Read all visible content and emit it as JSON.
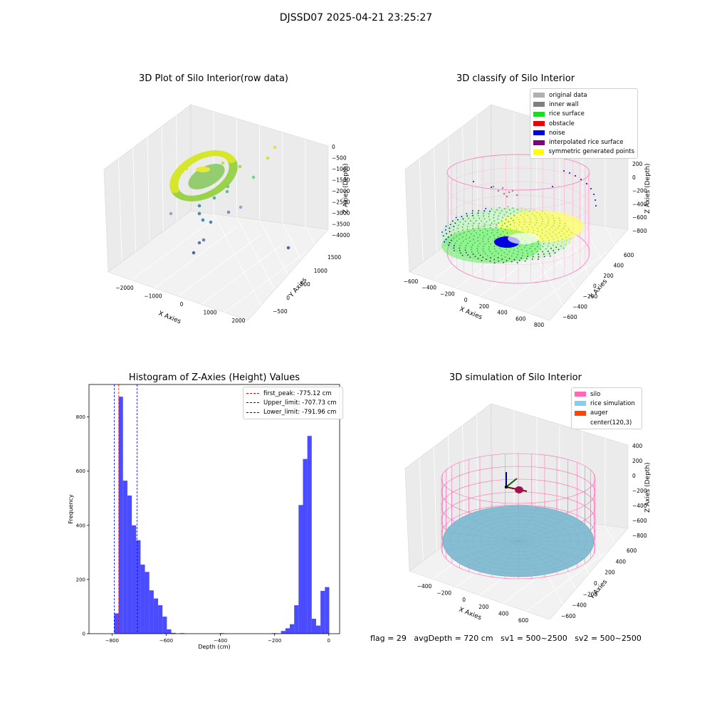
{
  "suptitle": "DJSSD07 2025-04-21 23:25:27",
  "footer": {
    "flag": "flag = 29",
    "avg_depth": "avgDepth = 720 cm",
    "sv1": "sv1 = 500~2500",
    "sv2": "sv2 = 500~2500"
  },
  "chart_data": [
    {
      "type": "scatter",
      "title": "3D Plot of Silo Interior(row data)",
      "xlabel": "X Axies",
      "ylabel": "Y Axies",
      "zlabel": "Z Axies (Depth)",
      "x_ticks": [
        "−2000",
        "−1000",
        "0",
        "1000",
        "2000"
      ],
      "y_ticks": [
        "−500",
        "0",
        "500",
        "1000",
        "1500"
      ],
      "z_ticks": [
        "0",
        "−500",
        "−1000",
        "−1500",
        "−2000",
        "−2500",
        "−3000",
        "−3500",
        "−4000"
      ],
      "xlim": [
        -2500,
        2500
      ],
      "ylim": [
        -700,
        1700
      ],
      "zlim": [
        -4300,
        200
      ]
    },
    {
      "type": "scatter",
      "title": "3D classify of Silo Interior",
      "xlabel": "X Axies",
      "ylabel": "Y Axies",
      "zlabel": "Z Axies (Depth)",
      "x_ticks": [
        "−600",
        "−400",
        "−200",
        "0",
        "200",
        "400",
        "600",
        "800"
      ],
      "y_ticks": [
        "−600",
        "−400",
        "−200",
        "0",
        "200",
        "400",
        "600"
      ],
      "z_ticks": [
        "200",
        "0",
        "−200",
        "−400",
        "−600",
        "−800"
      ],
      "legend": [
        {
          "label": "original data",
          "color": "#b0b0b0"
        },
        {
          "label": "inner wall",
          "color": "#808080"
        },
        {
          "label": "rice surface",
          "color": "#00ee00"
        },
        {
          "label": "obstacle",
          "color": "#ee0000"
        },
        {
          "label": "noise",
          "color": "#0000ee"
        },
        {
          "label": "interpolated rice surface",
          "color": "#800080"
        },
        {
          "label": "symmetric generated points",
          "color": "#ffff00"
        }
      ]
    },
    {
      "type": "bar",
      "title": "Histogram of Z-Axies (Height) Values",
      "xlabel": "Depth (cm)",
      "ylabel": "Frequency",
      "xlim": [
        -885,
        40
      ],
      "ylim": [
        0,
        920
      ],
      "x_ticks": [
        -800,
        -600,
        -400,
        -200,
        0
      ],
      "x_tick_labels": [
        "−800",
        "−600",
        "−400",
        "−200",
        "0"
      ],
      "y_ticks": [
        0,
        200,
        400,
        600,
        800
      ],
      "bar_color": "#0000ff",
      "bin_width": 16.2,
      "bins": [
        {
          "x": -791.96,
          "value": 75
        },
        {
          "x": -775.76,
          "value": 875
        },
        {
          "x": -759.56,
          "value": 565
        },
        {
          "x": -743.36,
          "value": 510
        },
        {
          "x": -727.16,
          "value": 400
        },
        {
          "x": -710.96,
          "value": 345
        },
        {
          "x": -694.76,
          "value": 255
        },
        {
          "x": -678.56,
          "value": 228
        },
        {
          "x": -662.36,
          "value": 160
        },
        {
          "x": -646.16,
          "value": 130
        },
        {
          "x": -629.96,
          "value": 105
        },
        {
          "x": -613.76,
          "value": 63
        },
        {
          "x": -597.56,
          "value": 16
        },
        {
          "x": -581.36,
          "value": 3
        },
        {
          "x": -565.16,
          "value": 0
        },
        {
          "x": -548.96,
          "value": 2
        },
        {
          "x": -403.16,
          "value": 2
        },
        {
          "x": -208.76,
          "value": 2
        },
        {
          "x": -192.56,
          "value": 1
        },
        {
          "x": -176.36,
          "value": 10
        },
        {
          "x": -160.16,
          "value": 20
        },
        {
          "x": -143.96,
          "value": 35
        },
        {
          "x": -127.76,
          "value": 105
        },
        {
          "x": -111.56,
          "value": 475
        },
        {
          "x": -95.36,
          "value": 645
        },
        {
          "x": -79.16,
          "value": 730
        },
        {
          "x": -62.96,
          "value": 55
        },
        {
          "x": -46.76,
          "value": 30
        },
        {
          "x": -30.56,
          "value": 158
        },
        {
          "x": -14.36,
          "value": 172
        }
      ],
      "vlines": [
        {
          "label": "first_peak: -775.12 cm",
          "x": -775.12,
          "color": "#ff0000"
        },
        {
          "label": "Upper_limit: -707.73 cm",
          "x": -707.73,
          "color": "#0000ff"
        },
        {
          "label": "Lower_limit: -791.96 cm",
          "x": -791.96,
          "color": "#0000ff"
        }
      ]
    },
    {
      "type": "scatter",
      "title": "3D simulation of Silo Interior",
      "xlabel": "X Axies",
      "ylabel": "Y Axies",
      "zlabel": "Z Axies (Depth)",
      "x_ticks": [
        "−400",
        "−200",
        "0",
        "200",
        "400",
        "600"
      ],
      "y_ticks": [
        "−600",
        "−400",
        "−200",
        "0",
        "200",
        "400",
        "600"
      ],
      "z_ticks": [
        "400",
        "200",
        "0",
        "−200",
        "−400",
        "−600",
        "−800"
      ],
      "legend": [
        {
          "label": "silo",
          "color": "#ff69b4"
        },
        {
          "label": "rice simulation",
          "color": "#87ceeb"
        },
        {
          "label": "auger",
          "color": "#ff4500"
        },
        {
          "label": "center(120,3)",
          "color": "#ffffff"
        }
      ]
    }
  ]
}
